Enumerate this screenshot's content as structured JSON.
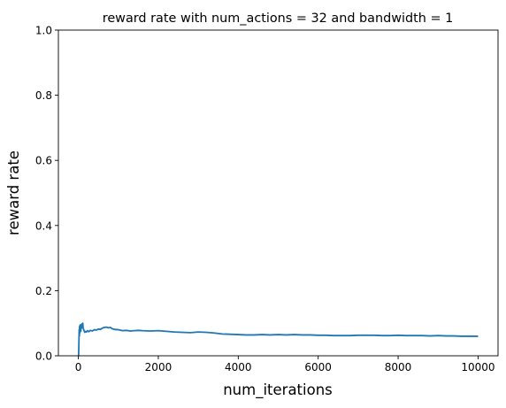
{
  "chart_data": {
    "type": "line",
    "title": "reward rate with num_actions = 32 and bandwidth = 1",
    "xlabel": "num_iterations",
    "ylabel": "reward rate",
    "xlim": [
      -500,
      10500
    ],
    "ylim": [
      0.0,
      1.0
    ],
    "grid": false,
    "legend": "none",
    "x_ticks": [
      0,
      2000,
      4000,
      6000,
      8000,
      10000
    ],
    "x_tick_labels": [
      "0",
      "2000",
      "4000",
      "6000",
      "8000",
      "10000"
    ],
    "y_ticks": [
      0.0,
      0.2,
      0.4,
      0.6,
      0.8,
      1.0
    ],
    "y_tick_labels": [
      "0.0",
      "0.2",
      "0.4",
      "0.6",
      "0.8",
      "1.0"
    ],
    "line_color": "#1f77b4",
    "series": [
      {
        "x": [
          1,
          5,
          10,
          15,
          20,
          25,
          30,
          35,
          40,
          45,
          50,
          55,
          60,
          70,
          80,
          90,
          100,
          110,
          120,
          140,
          160,
          180,
          200,
          230,
          260,
          300,
          350,
          400,
          450,
          500,
          550,
          600,
          650,
          700,
          750,
          800,
          850,
          900,
          1000,
          1100,
          1200,
          1300,
          1400,
          1500,
          1600,
          1800,
          2000,
          2200,
          2400,
          2600,
          2800,
          3000,
          3200,
          3400,
          3600,
          3800,
          4000,
          4200,
          4400,
          4600,
          4800,
          5000,
          5200,
          5400,
          5600,
          5800,
          6000,
          6200,
          6400,
          6600,
          6800,
          7000,
          7200,
          7400,
          7600,
          7800,
          8000,
          8200,
          8400,
          8600,
          8800,
          9000,
          9200,
          9400,
          9600,
          9800,
          10000
        ],
        "y": [
          0.0,
          0.0,
          0.02,
          0.05,
          0.08,
          0.06,
          0.09,
          0.07,
          0.085,
          0.095,
          0.08,
          0.09,
          0.075,
          0.095,
          0.085,
          0.098,
          0.09,
          0.1,
          0.085,
          0.078,
          0.072,
          0.075,
          0.073,
          0.077,
          0.074,
          0.078,
          0.076,
          0.08,
          0.079,
          0.082,
          0.081,
          0.085,
          0.087,
          0.088,
          0.086,
          0.087,
          0.083,
          0.081,
          0.08,
          0.077,
          0.078,
          0.076,
          0.077,
          0.078,
          0.077,
          0.076,
          0.077,
          0.075,
          0.073,
          0.072,
          0.071,
          0.073,
          0.072,
          0.07,
          0.067,
          0.066,
          0.065,
          0.064,
          0.064,
          0.065,
          0.064,
          0.065,
          0.064,
          0.065,
          0.064,
          0.064,
          0.063,
          0.063,
          0.062,
          0.062,
          0.062,
          0.063,
          0.063,
          0.063,
          0.062,
          0.062,
          0.063,
          0.062,
          0.062,
          0.062,
          0.061,
          0.062,
          0.061,
          0.061,
          0.06,
          0.06,
          0.06
        ]
      }
    ]
  }
}
